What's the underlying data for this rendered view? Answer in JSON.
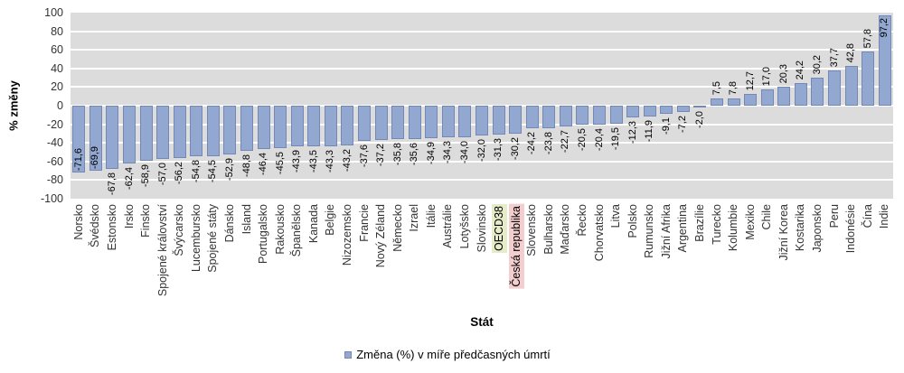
{
  "chart_data": {
    "type": "bar",
    "xlabel": "Stát",
    "ylabel": "% změny",
    "ylim": [
      -100,
      100
    ],
    "yticks": [
      100,
      80,
      60,
      40,
      20,
      0,
      -20,
      -40,
      -60,
      -80,
      -100
    ],
    "grid": true,
    "legend_position": "bottom",
    "decimal_separator": ",",
    "series": [
      {
        "name": "Změna (%) v míře předčasných úmrtí",
        "values": [
          -71.6,
          -69.9,
          -67.8,
          -62.4,
          -58.9,
          -57.0,
          -56.2,
          -54.8,
          -54.5,
          -52.9,
          -48.8,
          -46.4,
          -45.5,
          -43.9,
          -43.5,
          -43.3,
          -43.2,
          -37.6,
          -37.2,
          -35.8,
          -35.6,
          -34.9,
          -34.3,
          -34.0,
          -32.0,
          -31.3,
          -30.2,
          -24.2,
          -23.8,
          -22.7,
          -20.5,
          -20.4,
          -19.5,
          -12.3,
          -11.9,
          -9.1,
          -7.2,
          -2.0,
          7.5,
          7.8,
          12.7,
          17.0,
          20.3,
          24.2,
          30.2,
          37.7,
          42.8,
          57.8,
          97.2
        ]
      }
    ],
    "categories": [
      "Norsko",
      "Švédsko",
      "Estonsko",
      "Irsko",
      "Finsko",
      "Spojené království",
      "Švýcarsko",
      "Lucembursko",
      "Spojené státy",
      "Dánsko",
      "Island",
      "Portugalsko",
      "Rakousko",
      "Španělsko",
      "Kanada",
      "Belgie",
      "Nizozemsko",
      "Francie",
      "Nový Zéland",
      "Německo",
      "Izrael",
      "Itálie",
      "Austrálie",
      "Lotyšsko",
      "Slovinsko",
      "OECD38",
      "Česká republika",
      "Slovensko",
      "Bulharsko",
      "Maďarsko",
      "Řecko",
      "Chorvatsko",
      "Litva",
      "Polsko",
      "Rumunsko",
      "Jižní Afrika",
      "Argentina",
      "Brazílie",
      "Turecko",
      "Kolumbie",
      "Mexiko",
      "Chile",
      "Jižní Korea",
      "Kostarika",
      "Japonsko",
      "Peru",
      "Indonésie",
      "Čína",
      "Indie"
    ],
    "highlights": [
      {
        "category": "OECD38",
        "highlight_color": "#E7ECC8"
      },
      {
        "category": "Česká republika",
        "highlight_color": "#F2CECE"
      }
    ],
    "colors": {
      "bar_fill": "#92A8D1",
      "bar_border": "#7488B8",
      "plot_background": "#DCDCDC",
      "gridline": "#FFFFFF",
      "tick_text": "#333333",
      "value_label_text": "#000000"
    }
  }
}
